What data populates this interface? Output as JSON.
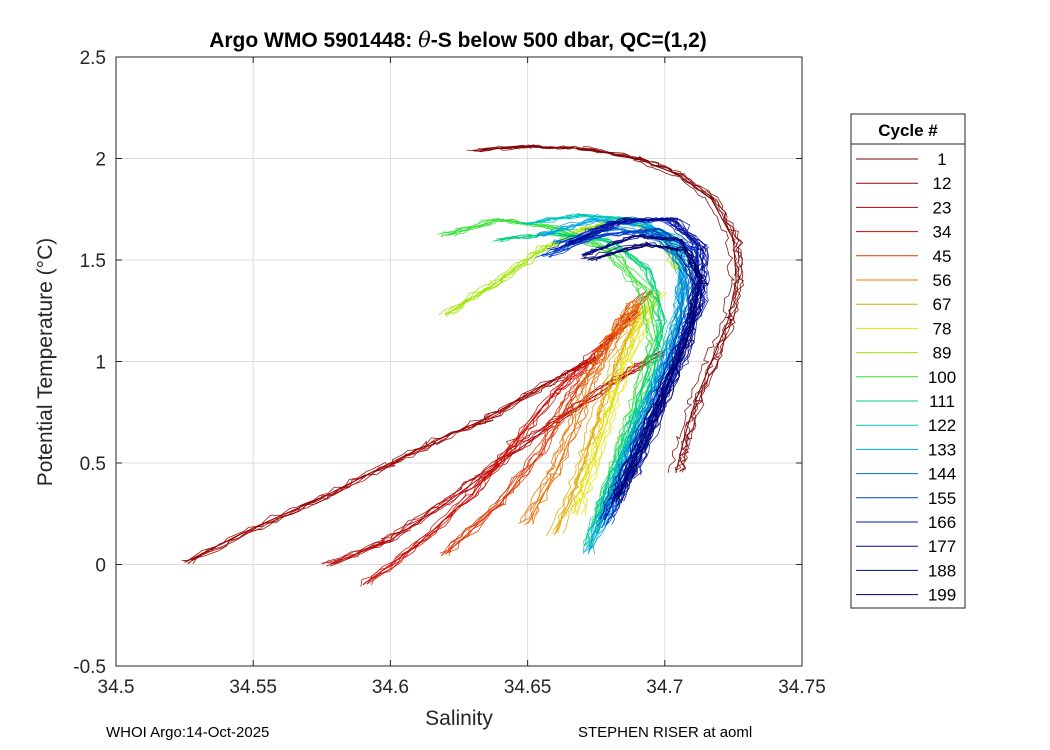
{
  "chart_data": {
    "type": "line",
    "title_prefix": "Argo WMO 5901448: ",
    "title_symbol": "θ",
    "title_suffix": "-S below 500 dbar,  QC=(1,2)",
    "xlabel": "Salinity",
    "ylabel": "Potential Temperature (°C)",
    "xlim": [
      34.5,
      34.75
    ],
    "ylim": [
      -0.5,
      2.5
    ],
    "xticks": [
      34.5,
      34.55,
      34.6,
      34.65,
      34.7,
      34.75
    ],
    "xtick_labels": [
      "34.5",
      "34.55",
      "34.6",
      "34.65",
      "34.7",
      "34.75"
    ],
    "yticks": [
      -0.5,
      0,
      0.5,
      1,
      1.5,
      2,
      2.5
    ],
    "ytick_labels": [
      "-0.5",
      "0",
      "0.5",
      "1",
      "1.5",
      "2",
      "2.5"
    ],
    "grid": true,
    "legend_position": "right",
    "legend_title": "Cycle #",
    "series": [
      {
        "name": "1",
        "color": "#800000",
        "points": [
          [
            34.63,
            2.04
          ],
          [
            34.65,
            2.06
          ],
          [
            34.67,
            2.05
          ],
          [
            34.69,
            2.0
          ],
          [
            34.705,
            1.92
          ],
          [
            34.717,
            1.8
          ],
          [
            34.725,
            1.6
          ],
          [
            34.726,
            1.4
          ],
          [
            34.723,
            1.2
          ],
          [
            34.717,
            1.0
          ],
          [
            34.711,
            0.8
          ],
          [
            34.707,
            0.62
          ],
          [
            34.704,
            0.45
          ]
        ]
      },
      {
        "name": "12",
        "color": "#9b0000",
        "points": [
          [
            34.525,
            0.01
          ],
          [
            34.55,
            0.18
          ],
          [
            34.575,
            0.33
          ],
          [
            34.6,
            0.5
          ],
          [
            34.615,
            0.6
          ],
          [
            34.635,
            0.72
          ],
          [
            34.655,
            0.88
          ],
          [
            34.675,
            1.02
          ]
        ]
      },
      {
        "name": "23",
        "color": "#b40000",
        "points": [
          [
            34.578,
            0.0
          ],
          [
            34.6,
            0.12
          ],
          [
            34.62,
            0.3
          ],
          [
            34.64,
            0.5
          ],
          [
            34.66,
            0.7
          ],
          [
            34.68,
            0.88
          ],
          [
            34.7,
            1.05
          ]
        ]
      },
      {
        "name": "34",
        "color": "#cc0a00",
        "points": [
          [
            34.59,
            -0.1
          ],
          [
            34.61,
            0.1
          ],
          [
            34.63,
            0.35
          ],
          [
            34.645,
            0.6
          ],
          [
            34.66,
            0.85
          ],
          [
            34.675,
            1.05
          ],
          [
            34.69,
            1.25
          ]
        ]
      },
      {
        "name": "45",
        "color": "#dd3300",
        "points": [
          [
            34.62,
            0.05
          ],
          [
            34.64,
            0.3
          ],
          [
            34.655,
            0.55
          ],
          [
            34.665,
            0.8
          ],
          [
            34.675,
            1.0
          ],
          [
            34.685,
            1.2
          ],
          [
            34.695,
            1.35
          ]
        ]
      },
      {
        "name": "56",
        "color": "#e87000",
        "points": [
          [
            34.65,
            0.2
          ],
          [
            34.66,
            0.45
          ],
          [
            34.668,
            0.7
          ],
          [
            34.675,
            0.95
          ],
          [
            34.683,
            1.15
          ],
          [
            34.69,
            1.3
          ]
        ]
      },
      {
        "name": "67",
        "color": "#e0a800",
        "points": [
          [
            34.66,
            0.15
          ],
          [
            34.668,
            0.4
          ],
          [
            34.674,
            0.65
          ],
          [
            34.68,
            0.9
          ],
          [
            34.686,
            1.1
          ],
          [
            34.692,
            1.28
          ]
        ]
      },
      {
        "name": "78",
        "color": "#e3e300",
        "points": [
          [
            34.668,
            0.25
          ],
          [
            34.674,
            0.5
          ],
          [
            34.68,
            0.75
          ],
          [
            34.686,
            1.0
          ],
          [
            34.692,
            1.2
          ],
          [
            34.698,
            1.35
          ]
        ]
      },
      {
        "name": "89",
        "color": "#9ee600",
        "points": [
          [
            34.62,
            1.23
          ],
          [
            34.64,
            1.4
          ],
          [
            34.655,
            1.55
          ],
          [
            34.67,
            1.65
          ],
          [
            34.685,
            1.7
          ],
          [
            34.7,
            1.62
          ],
          [
            34.705,
            1.45
          ]
        ]
      },
      {
        "name": "100",
        "color": "#33e033",
        "points": [
          [
            34.62,
            1.62
          ],
          [
            34.64,
            1.7
          ],
          [
            34.66,
            1.66
          ],
          [
            34.68,
            1.55
          ],
          [
            34.693,
            1.35
          ],
          [
            34.697,
            1.1
          ],
          [
            34.69,
            0.8
          ],
          [
            34.683,
            0.5
          ],
          [
            34.676,
            0.2
          ]
        ]
      },
      {
        "name": "111",
        "color": "#00d27a",
        "points": [
          [
            34.64,
            1.6
          ],
          [
            34.66,
            1.63
          ],
          [
            34.68,
            1.6
          ],
          [
            34.695,
            1.45
          ],
          [
            34.7,
            1.2
          ],
          [
            34.695,
            0.9
          ],
          [
            34.686,
            0.6
          ],
          [
            34.678,
            0.3
          ],
          [
            34.672,
            0.08
          ]
        ]
      },
      {
        "name": "122",
        "color": "#00c4bf",
        "points": [
          [
            34.65,
            1.68
          ],
          [
            34.67,
            1.72
          ],
          [
            34.69,
            1.7
          ],
          [
            34.705,
            1.6
          ],
          [
            34.708,
            1.35
          ],
          [
            34.702,
            1.05
          ],
          [
            34.692,
            0.75
          ],
          [
            34.683,
            0.45
          ],
          [
            34.675,
            0.15
          ]
        ]
      },
      {
        "name": "133",
        "color": "#00a2e0",
        "points": [
          [
            34.655,
            1.62
          ],
          [
            34.675,
            1.7
          ],
          [
            34.695,
            1.66
          ],
          [
            34.707,
            1.5
          ],
          [
            34.706,
            1.2
          ],
          [
            34.698,
            0.9
          ],
          [
            34.688,
            0.6
          ],
          [
            34.68,
            0.3
          ],
          [
            34.672,
            0.05
          ]
        ]
      },
      {
        "name": "144",
        "color": "#0070d4",
        "points": [
          [
            34.66,
            1.58
          ],
          [
            34.68,
            1.66
          ],
          [
            34.698,
            1.62
          ],
          [
            34.708,
            1.45
          ],
          [
            34.705,
            1.15
          ],
          [
            34.697,
            0.85
          ],
          [
            34.688,
            0.55
          ],
          [
            34.68,
            0.28
          ]
        ]
      },
      {
        "name": "155",
        "color": "#0040cc",
        "points": [
          [
            34.655,
            1.52
          ],
          [
            34.675,
            1.62
          ],
          [
            34.695,
            1.65
          ],
          [
            34.71,
            1.55
          ],
          [
            34.71,
            1.3
          ],
          [
            34.703,
            1.0
          ],
          [
            34.694,
            0.7
          ],
          [
            34.685,
            0.42
          ],
          [
            34.677,
            0.18
          ]
        ]
      },
      {
        "name": "166",
        "color": "#0018b4",
        "points": [
          [
            34.66,
            1.55
          ],
          [
            34.68,
            1.68
          ],
          [
            34.7,
            1.7
          ],
          [
            34.712,
            1.58
          ],
          [
            34.712,
            1.32
          ],
          [
            34.704,
            1.02
          ],
          [
            34.695,
            0.72
          ],
          [
            34.686,
            0.45
          ],
          [
            34.678,
            0.22
          ]
        ]
      },
      {
        "name": "177",
        "color": "#000c99",
        "points": [
          [
            34.665,
            1.58
          ],
          [
            34.685,
            1.7
          ],
          [
            34.703,
            1.7
          ],
          [
            34.714,
            1.55
          ],
          [
            34.713,
            1.3
          ],
          [
            34.705,
            1.0
          ],
          [
            34.696,
            0.7
          ],
          [
            34.688,
            0.42
          ]
        ]
      },
      {
        "name": "188",
        "color": "#00077f",
        "points": [
          [
            34.67,
            1.52
          ],
          [
            34.69,
            1.62
          ],
          [
            34.706,
            1.6
          ],
          [
            34.713,
            1.42
          ],
          [
            34.709,
            1.15
          ],
          [
            34.7,
            0.85
          ],
          [
            34.691,
            0.58
          ],
          [
            34.683,
            0.32
          ]
        ]
      },
      {
        "name": "199",
        "color": "#00006a",
        "points": [
          [
            34.672,
            1.5
          ],
          [
            34.692,
            1.58
          ],
          [
            34.707,
            1.55
          ],
          [
            34.713,
            1.38
          ],
          [
            34.708,
            1.1
          ],
          [
            34.699,
            0.82
          ],
          [
            34.69,
            0.55
          ],
          [
            34.682,
            0.3
          ]
        ]
      }
    ]
  },
  "footer": {
    "left": "WHOI Argo:14-Oct-2025",
    "right": "STEPHEN RISER at aoml"
  }
}
